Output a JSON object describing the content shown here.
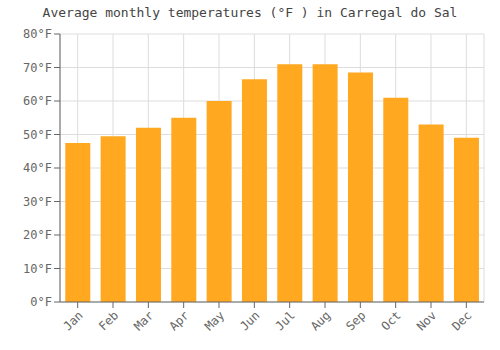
{
  "chart_data": {
    "type": "bar",
    "title": "Average monthly temperatures (°F ) in Carregal do Sal",
    "categories": [
      "Jan",
      "Feb",
      "Mar",
      "Apr",
      "May",
      "Jun",
      "Jul",
      "Aug",
      "Sep",
      "Oct",
      "Nov",
      "Dec"
    ],
    "values": [
      47.5,
      49.5,
      52.0,
      55.0,
      60.0,
      66.5,
      71.0,
      71.0,
      68.5,
      61.0,
      53.0,
      49.0
    ],
    "color": "#FFA820",
    "ylim": [
      0,
      80
    ],
    "yticks": [
      {
        "value": 0,
        "label": "0°F"
      },
      {
        "value": 10,
        "label": "10°F"
      },
      {
        "value": 20,
        "label": "20°F"
      },
      {
        "value": 30,
        "label": "30°F"
      },
      {
        "value": 40,
        "label": "40°F"
      },
      {
        "value": 50,
        "label": "50°F"
      },
      {
        "value": 60,
        "label": "60°F"
      },
      {
        "value": 70,
        "label": "70°F"
      },
      {
        "value": 80,
        "label": "80°F"
      }
    ],
    "grid": true
  }
}
